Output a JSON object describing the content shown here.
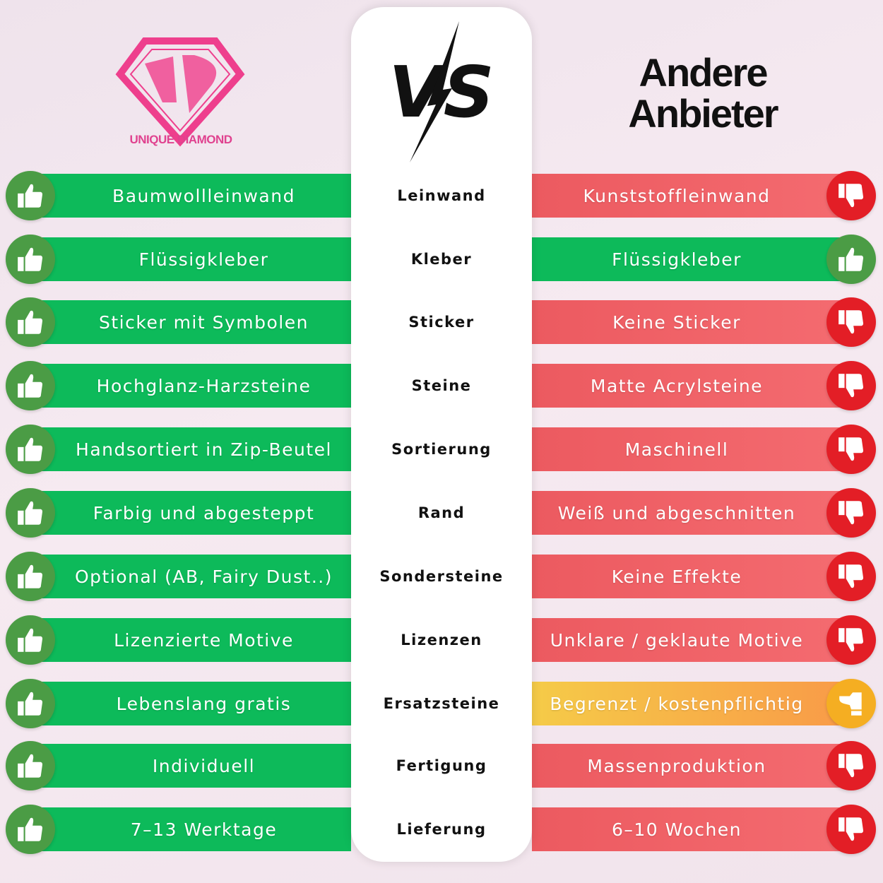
{
  "brand": {
    "name": "UNIQUE DIAMOND",
    "color": "#e0428f"
  },
  "vs_label": "VS",
  "competitor_title_line1": "Andere",
  "competitor_title_line2": "Anbieter",
  "colors": {
    "good": "#0dba5a",
    "bad": "#ec5a60",
    "partial": "#f5ae22"
  },
  "rows": [
    {
      "criterion": "Leinwand",
      "ours": "Baumwollleinwand",
      "theirs": "Kunststoffleinwand",
      "theirs_rating": "bad"
    },
    {
      "criterion": "Kleber",
      "ours": "Flüssigkleber",
      "theirs": "Flüssigkleber",
      "theirs_rating": "good"
    },
    {
      "criterion": "Sticker",
      "ours": "Sticker mit Symbolen",
      "theirs": "Keine Sticker",
      "theirs_rating": "bad"
    },
    {
      "criterion": "Steine",
      "ours": "Hochglanz-Harzsteine",
      "theirs": "Matte Acrylsteine",
      "theirs_rating": "bad"
    },
    {
      "criterion": "Sortierung",
      "ours": "Handsortiert in Zip-Beutel",
      "theirs": "Maschinell",
      "theirs_rating": "bad"
    },
    {
      "criterion": "Rand",
      "ours": "Farbig und abgesteppt",
      "theirs": "Weiß und abgeschnitten",
      "theirs_rating": "bad"
    },
    {
      "criterion": "Sondersteine",
      "ours": "Optional (AB, Fairy Dust..)",
      "theirs": "Keine Effekte",
      "theirs_rating": "bad"
    },
    {
      "criterion": "Lizenzen",
      "ours": "Lizenzierte Motive",
      "theirs": "Unklare / geklaute Motive",
      "theirs_rating": "bad"
    },
    {
      "criterion": "Ersatzsteine",
      "ours": "Lebenslang gratis",
      "theirs": "Begrenzt / kostenpflichtig",
      "theirs_rating": "mid"
    },
    {
      "criterion": "Fertigung",
      "ours": "Individuell",
      "theirs": "Massenproduktion",
      "theirs_rating": "bad"
    },
    {
      "criterion": "Lieferung",
      "ours": "7–13 Werktage",
      "theirs": "6–10 Wochen",
      "theirs_rating": "bad"
    }
  ]
}
